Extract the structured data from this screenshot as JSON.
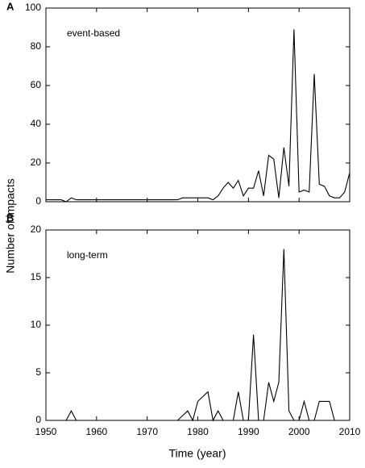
{
  "y_label": "Number of impacts",
  "x_label": "Time (year)",
  "chart_data": [
    {
      "type": "line",
      "panel": "A",
      "annotation": "event-based",
      "x": [
        1950,
        1951,
        1952,
        1953,
        1954,
        1955,
        1956,
        1957,
        1958,
        1959,
        1960,
        1961,
        1962,
        1963,
        1964,
        1965,
        1966,
        1967,
        1968,
        1969,
        1970,
        1971,
        1972,
        1973,
        1974,
        1975,
        1976,
        1977,
        1978,
        1979,
        1980,
        1981,
        1982,
        1983,
        1984,
        1985,
        1986,
        1987,
        1988,
        1989,
        1990,
        1991,
        1992,
        1993,
        1994,
        1995,
        1996,
        1997,
        1998,
        1999,
        2000,
        2001,
        2002,
        2003,
        2004,
        2005,
        2006,
        2007,
        2008,
        2009,
        2010
      ],
      "values": [
        1,
        1,
        1,
        1,
        0,
        2,
        1,
        1,
        1,
        1,
        1,
        1,
        1,
        1,
        1,
        1,
        1,
        1,
        1,
        1,
        1,
        1,
        1,
        1,
        1,
        1,
        1,
        2,
        2,
        2,
        2,
        2,
        2,
        1,
        3,
        7,
        10,
        7,
        11,
        3,
        7,
        7,
        16,
        3,
        24,
        22,
        2,
        28,
        8,
        89,
        5,
        6,
        5,
        66,
        9,
        8,
        3,
        2,
        2,
        5,
        15
      ],
      "color": "#000000",
      "xlim": [
        1950,
        2010
      ],
      "xticks": [
        1950,
        1960,
        1970,
        1980,
        1990,
        2000,
        2010
      ],
      "ylim": [
        0,
        100
      ],
      "yticks": [
        0,
        20,
        40,
        60,
        80,
        100
      ]
    },
    {
      "type": "line",
      "panel": "B",
      "annotation": "long-term",
      "x": [
        1952,
        1953,
        1954,
        1955,
        1956,
        1957,
        1958,
        1959,
        1960,
        1961,
        1962,
        1963,
        1964,
        1965,
        1966,
        1967,
        1968,
        1969,
        1970,
        1971,
        1972,
        1973,
        1974,
        1975,
        1976,
        1977,
        1978,
        1979,
        1980,
        1981,
        1982,
        1983,
        1984,
        1985,
        1986,
        1987,
        1988,
        1989,
        1990,
        1991,
        1992,
        1993,
        1994,
        1995,
        1996,
        1997,
        1998,
        1999,
        2000,
        2001,
        2002,
        2003,
        2004,
        2005,
        2006,
        2007
      ],
      "values": [
        0,
        0,
        0,
        1,
        0,
        0,
        0,
        0,
        0,
        0,
        0,
        0,
        0,
        0,
        0,
        0,
        0,
        0,
        0,
        0,
        0,
        0,
        0,
        0,
        0,
        0.5,
        1,
        0,
        2,
        2.5,
        3,
        0,
        1,
        0,
        0,
        0,
        3,
        0,
        0,
        9,
        0,
        0,
        4,
        2,
        4,
        18,
        1,
        0,
        0,
        2,
        0,
        0,
        2,
        2,
        2,
        0
      ],
      "color": "#000000",
      "xlim": [
        1950,
        2010
      ],
      "xticks": [
        1950,
        1960,
        1970,
        1980,
        1990,
        2000,
        2010
      ],
      "ylim": [
        0,
        20
      ],
      "yticks": [
        0,
        5,
        10,
        15,
        20
      ]
    }
  ]
}
